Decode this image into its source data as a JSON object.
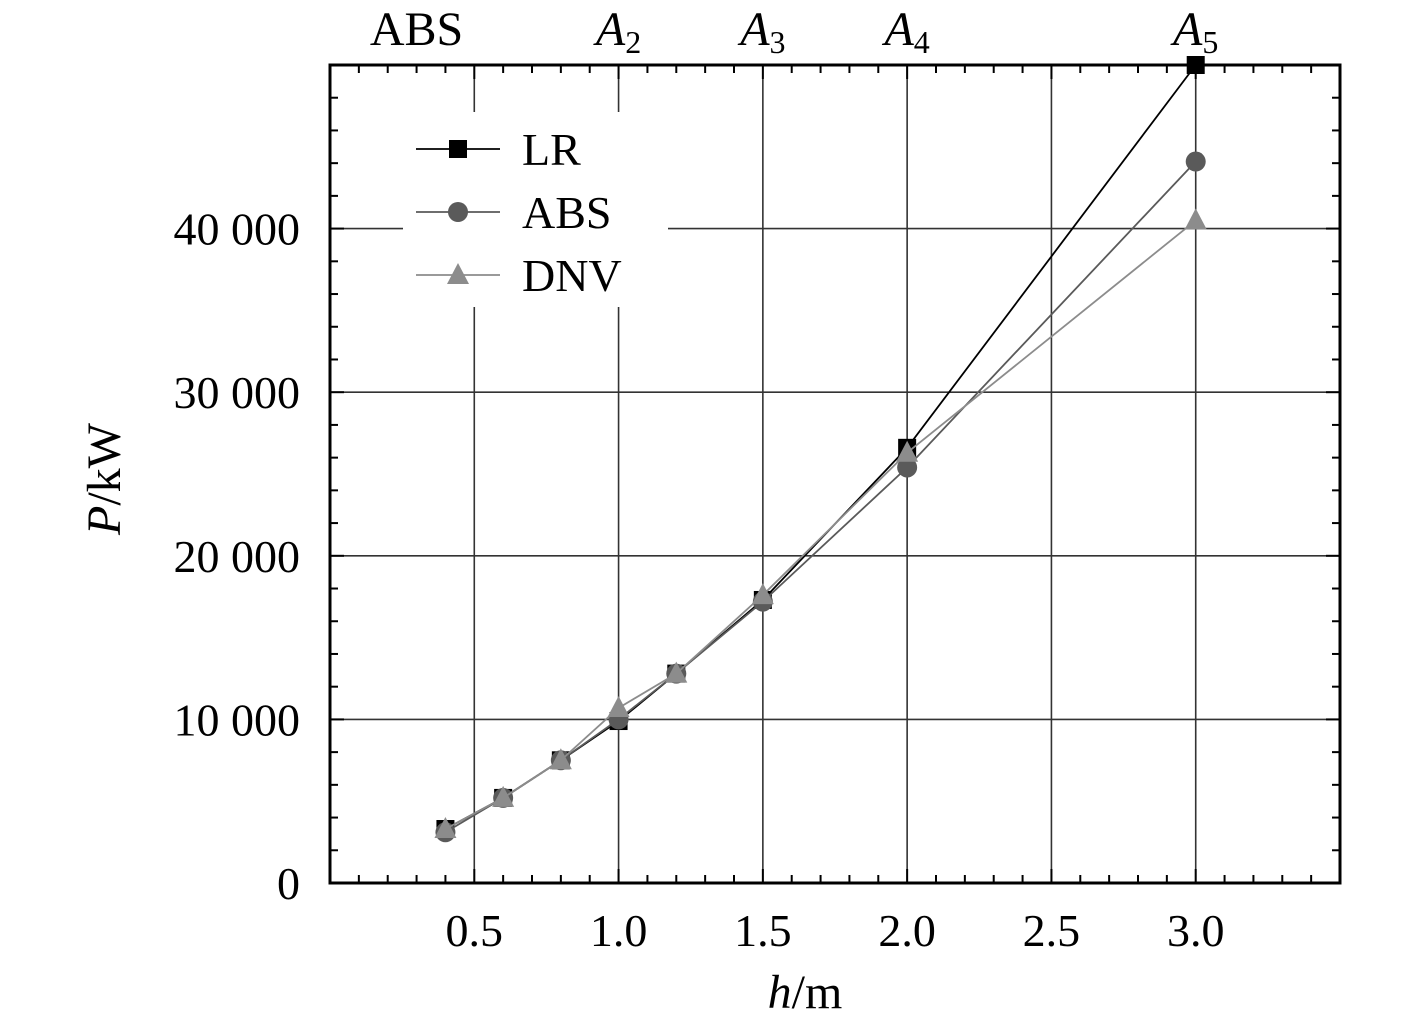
{
  "chart_data": {
    "type": "line",
    "xlabel": {
      "var": "h",
      "unit": "/m"
    },
    "ylabel": {
      "var": "P",
      "unit": "/kW"
    },
    "xlim": [
      0.0,
      3.5
    ],
    "ylim": [
      0,
      50000
    ],
    "x_ticks": [
      {
        "value": 0.5,
        "label": "0.5"
      },
      {
        "value": 1.0,
        "label": "1.0"
      },
      {
        "value": 1.5,
        "label": "1.5"
      },
      {
        "value": 2.0,
        "label": "2.0"
      },
      {
        "value": 2.5,
        "label": "2.5"
      },
      {
        "value": 3.0,
        "label": "3.0"
      }
    ],
    "y_ticks": [
      {
        "value": 0,
        "label": "0"
      },
      {
        "value": 10000,
        "label": "10 000"
      },
      {
        "value": 20000,
        "label": "20 000"
      },
      {
        "value": 30000,
        "label": "30 000"
      },
      {
        "value": 40000,
        "label": "40 000"
      }
    ],
    "top_labels": [
      {
        "x": 0.3,
        "main": "ABS",
        "sub": ""
      },
      {
        "x": 1.0,
        "main": "A",
        "sub": "2"
      },
      {
        "x": 1.5,
        "main": "A",
        "sub": "3"
      },
      {
        "x": 2.0,
        "main": "A",
        "sub": "4"
      },
      {
        "x": 3.0,
        "main": "A",
        "sub": "5"
      }
    ],
    "grid": true,
    "legend_position": "top-left",
    "series": [
      {
        "name": "LR",
        "marker": "square",
        "color": "#000000",
        "x": [
          0.4,
          0.6,
          0.8,
          1.0,
          1.2,
          1.5,
          2.0,
          3.0
        ],
        "values": [
          3300,
          5200,
          7500,
          9900,
          12800,
          17300,
          26600,
          50000
        ]
      },
      {
        "name": "ABS",
        "marker": "circle",
        "color": "#5a5a5a",
        "x": [
          0.4,
          0.6,
          0.8,
          1.0,
          1.2,
          1.5,
          2.0,
          3.0
        ],
        "values": [
          3100,
          5200,
          7500,
          10000,
          12800,
          17200,
          25400,
          44100
        ]
      },
      {
        "name": "DNV",
        "marker": "triangle",
        "color": "#8c8c8c",
        "x": [
          0.4,
          0.6,
          0.8,
          1.0,
          1.2,
          1.5,
          2.0,
          3.0
        ],
        "values": [
          3300,
          5200,
          7500,
          10700,
          12800,
          17600,
          26300,
          40500
        ]
      }
    ]
  }
}
